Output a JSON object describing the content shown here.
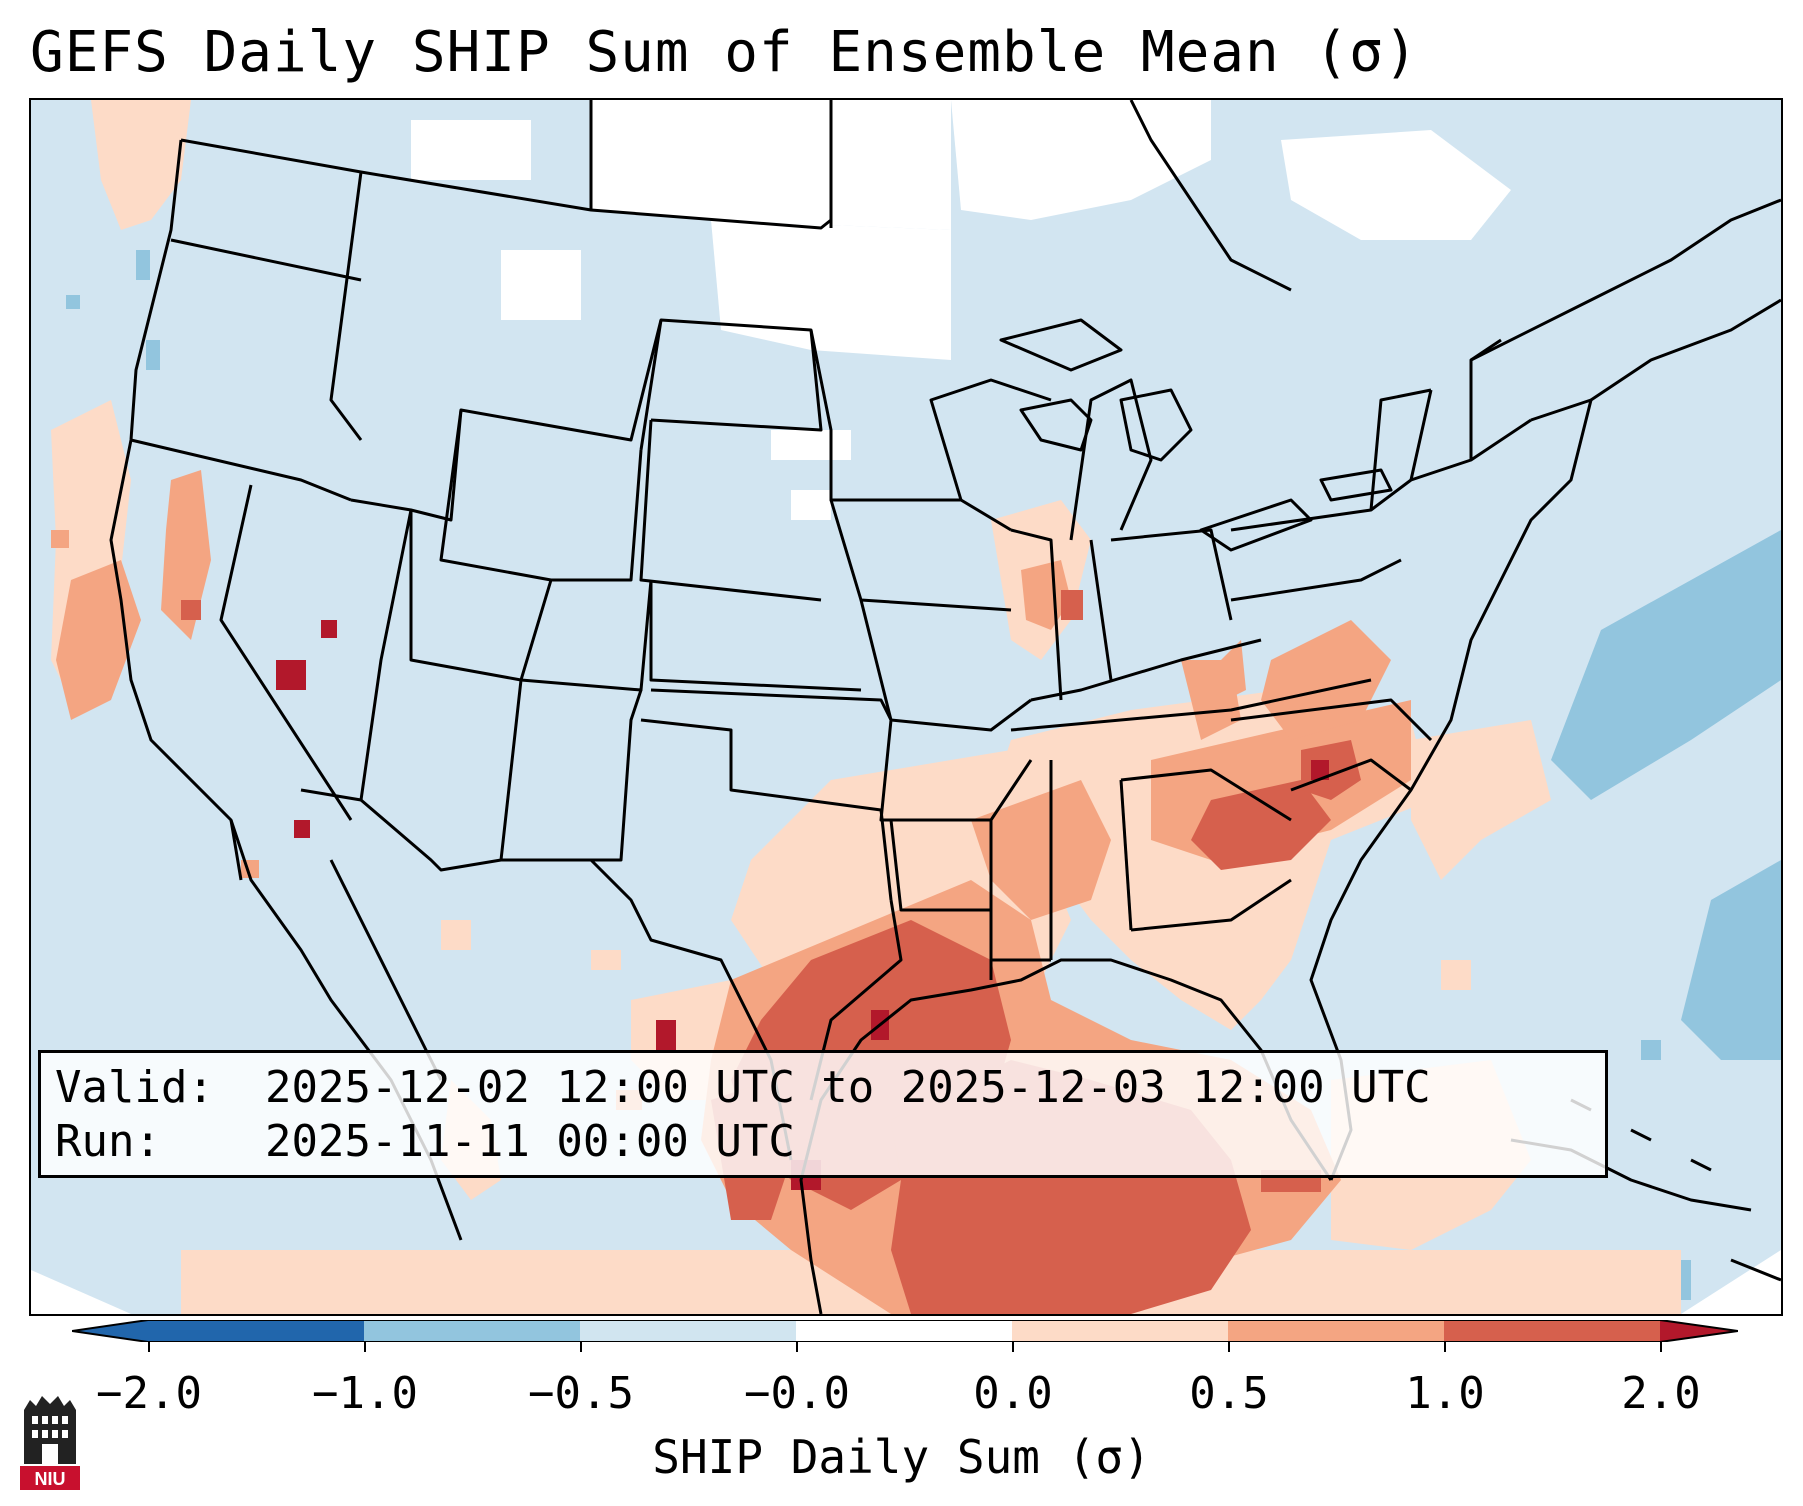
{
  "title": "GEFS Daily SHIP Sum of Ensemble Mean (σ)",
  "info": {
    "valid_key": "Valid:",
    "valid_value": "2025-12-02 12:00 UTC to 2025-12-03 12:00 UTC",
    "run_key": "Run:",
    "run_value": "2025-11-11 00:00 UTC"
  },
  "colorbar": {
    "label": "SHIP Daily Sum (σ)",
    "ticks": [
      "−2.0",
      "−1.0",
      "−0.5",
      "−0.0",
      "0.0",
      "0.5",
      "1.0",
      "2.0"
    ],
    "bins": [
      {
        "color": "#2166ac",
        "from": -2.0,
        "to": -1.0
      },
      {
        "color": "#92c5de",
        "from": -1.0,
        "to": -0.5
      },
      {
        "color": "#d1e5f0",
        "from": -0.5,
        "to": -0.0
      },
      {
        "color": "#ffffff",
        "from": -0.0,
        "to": 0.0
      },
      {
        "color": "#fddbc7",
        "from": 0.0,
        "to": 0.5
      },
      {
        "color": "#f4a582",
        "from": 0.5,
        "to": 1.0
      },
      {
        "color": "#d6604d",
        "from": 1.0,
        "to": 2.0
      }
    ],
    "under_color": "#2166ac",
    "over_color": "#b2182b"
  },
  "map": {
    "projection": "Lambert Conformal",
    "region": "Contiguous United States",
    "background_color": "#d1e5f0",
    "highest_values_region": "Gulf of Mexico and southern Texas",
    "low_values_region": "western Atlantic"
  },
  "logo": {
    "text": "NIU",
    "color": "#c8102e"
  }
}
